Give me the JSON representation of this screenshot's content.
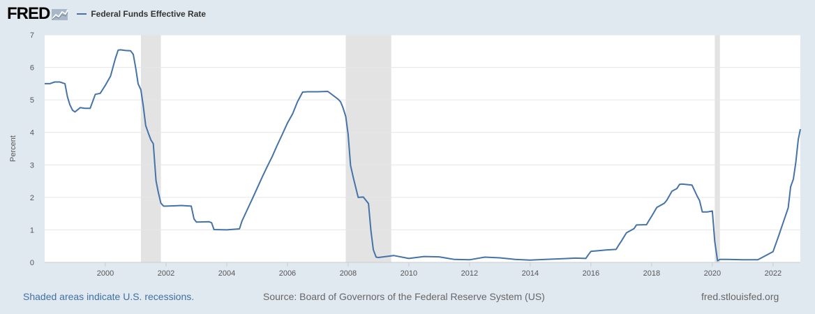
{
  "header": {
    "logo_text": "FRED",
    "series_label": "Federal Funds Effective Rate"
  },
  "footer": {
    "recession_note": "Shaded areas indicate U.S. recessions.",
    "source": "Source: Board of Governors of the Federal Reserve System (US)",
    "site": "fred.stlouisfed.org"
  },
  "colors": {
    "series": "#4572a7",
    "recession": "#e3e3e3",
    "grid": "#e6e6e6",
    "background": "#e1e9f0",
    "plot_bg": "#ffffff"
  },
  "chart_data": {
    "type": "line",
    "title": "",
    "xlabel": "",
    "ylabel": "Percent",
    "xlim": [
      1998.0,
      2022.9
    ],
    "ylim": [
      0,
      7
    ],
    "yticks": [
      "0",
      "1",
      "2",
      "3",
      "4",
      "5",
      "6",
      "7"
    ],
    "xticks": [
      "2000",
      "2002",
      "2004",
      "2006",
      "2008",
      "2010",
      "2012",
      "2014",
      "2016",
      "2018",
      "2020",
      "2022"
    ],
    "grid": true,
    "legend": "top-left",
    "recessions": [
      {
        "start": 2001.17,
        "end": 2001.83
      },
      {
        "start": 2007.92,
        "end": 2009.42
      },
      {
        "start": 2020.08,
        "end": 2020.25
      }
    ],
    "series": [
      {
        "name": "Federal Funds Effective Rate",
        "x": [
          1998.0,
          1998.17,
          1998.33,
          1998.5,
          1998.67,
          1998.75,
          1998.83,
          1998.92,
          1999.0,
          1999.17,
          1999.33,
          1999.5,
          1999.67,
          1999.83,
          2000.0,
          2000.17,
          2000.33,
          2000.42,
          2000.5,
          2000.67,
          2000.83,
          2000.92,
          2001.0,
          2001.08,
          2001.17,
          2001.25,
          2001.33,
          2001.42,
          2001.5,
          2001.58,
          2001.67,
          2001.75,
          2001.83,
          2001.92,
          2002.0,
          2002.5,
          2002.83,
          2002.92,
          2003.0,
          2003.42,
          2003.5,
          2003.58,
          2004.0,
          2004.42,
          2004.5,
          2004.58,
          2004.67,
          2004.83,
          2005.0,
          2005.17,
          2005.33,
          2005.5,
          2005.67,
          2005.83,
          2006.0,
          2006.17,
          2006.33,
          2006.5,
          2006.67,
          2007.0,
          2007.33,
          2007.67,
          2007.75,
          2007.83,
          2007.92,
          2008.0,
          2008.08,
          2008.17,
          2008.33,
          2008.5,
          2008.67,
          2008.75,
          2008.83,
          2008.92,
          2009.0,
          2009.5,
          2010.0,
          2010.5,
          2011.0,
          2011.5,
          2012.0,
          2012.5,
          2013.0,
          2013.5,
          2014.0,
          2014.5,
          2015.0,
          2015.5,
          2015.83,
          2015.92,
          2016.0,
          2016.5,
          2016.83,
          2016.92,
          2017.0,
          2017.17,
          2017.42,
          2017.5,
          2017.83,
          2017.92,
          2018.0,
          2018.17,
          2018.42,
          2018.5,
          2018.67,
          2018.83,
          2018.92,
          2019.0,
          2019.33,
          2019.5,
          2019.58,
          2019.67,
          2019.83,
          2020.0,
          2020.08,
          2020.17,
          2020.25,
          2020.5,
          2021.0,
          2021.5,
          2022.0,
          2022.17,
          2022.33,
          2022.5,
          2022.58,
          2022.67,
          2022.75,
          2022.83,
          2022.9
        ],
        "values": [
          5.5,
          5.5,
          5.55,
          5.55,
          5.5,
          5.1,
          4.85,
          4.68,
          4.63,
          4.76,
          4.74,
          4.74,
          5.17,
          5.2,
          5.45,
          5.73,
          6.27,
          6.53,
          6.54,
          6.52,
          6.51,
          6.4,
          5.98,
          5.49,
          5.31,
          4.8,
          4.21,
          3.97,
          3.77,
          3.65,
          2.51,
          2.13,
          1.82,
          1.73,
          1.73,
          1.75,
          1.73,
          1.34,
          1.24,
          1.25,
          1.22,
          1.01,
          1.0,
          1.03,
          1.27,
          1.43,
          1.61,
          1.93,
          2.28,
          2.63,
          2.94,
          3.26,
          3.62,
          3.94,
          4.29,
          4.57,
          4.94,
          5.24,
          5.25,
          5.25,
          5.26,
          5.02,
          4.94,
          4.76,
          4.49,
          3.94,
          2.98,
          2.61,
          2.0,
          2.01,
          1.81,
          0.97,
          0.39,
          0.16,
          0.15,
          0.21,
          0.12,
          0.18,
          0.17,
          0.09,
          0.08,
          0.16,
          0.14,
          0.09,
          0.07,
          0.09,
          0.11,
          0.13,
          0.12,
          0.24,
          0.34,
          0.38,
          0.4,
          0.54,
          0.65,
          0.91,
          1.04,
          1.15,
          1.16,
          1.3,
          1.42,
          1.69,
          1.82,
          1.91,
          2.19,
          2.27,
          2.4,
          2.41,
          2.38,
          2.04,
          1.9,
          1.55,
          1.55,
          1.58,
          0.65,
          0.05,
          0.09,
          0.09,
          0.08,
          0.08,
          0.33,
          0.77,
          1.21,
          1.68,
          2.33,
          2.56,
          3.08,
          3.78,
          4.1
        ]
      }
    ]
  }
}
